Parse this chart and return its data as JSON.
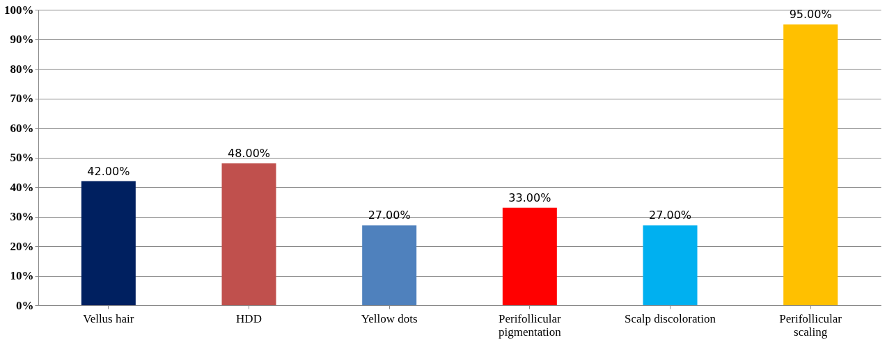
{
  "chart_data": {
    "type": "bar",
    "categories": [
      "Vellus hair",
      "HDD",
      "Yellow dots",
      "Perifollicular pigmentation",
      "Scalp discoloration",
      "Perifollicular scaling"
    ],
    "values": [
      42,
      48,
      27,
      33,
      27,
      95
    ],
    "colors": [
      "#002060",
      "#c0504d",
      "#4f81bd",
      "#ff0000",
      "#00b0f0",
      "#ffc000"
    ],
    "value_labels": [
      "42.00%",
      "48.00%",
      "27.00%",
      "33.00%",
      "27.00%",
      "95.00%"
    ],
    "ylim": [
      0,
      100
    ],
    "yticks": [
      {
        "value": 0,
        "label": "0%"
      },
      {
        "value": 10,
        "label": "10%"
      },
      {
        "value": 20,
        "label": "20%"
      },
      {
        "value": 30,
        "label": "30%"
      },
      {
        "value": 40,
        "label": "40%"
      },
      {
        "value": 50,
        "label": "50%"
      },
      {
        "value": 60,
        "label": "60%"
      },
      {
        "value": 70,
        "label": "70%"
      },
      {
        "value": 80,
        "label": "80%"
      },
      {
        "value": 90,
        "label": "90%"
      },
      {
        "value": 100,
        "label": "100%"
      }
    ],
    "grid": "y"
  }
}
